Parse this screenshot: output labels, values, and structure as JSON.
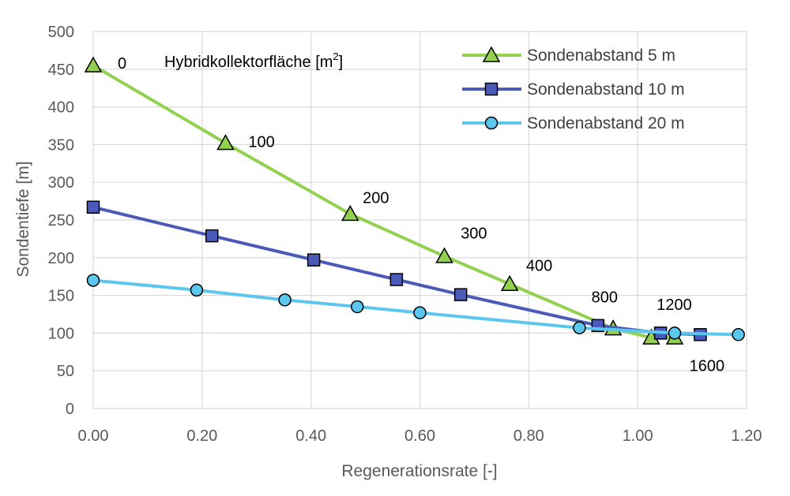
{
  "chart_data": {
    "type": "line",
    "xlabel": "Regenerationsrate [-]",
    "ylabel": "Sondentiefe [m]",
    "xlim": [
      0,
      1.2
    ],
    "ylim": [
      0,
      500
    ],
    "x_ticks": [
      "0.00",
      "0.20",
      "0.40",
      "0.60",
      "0.80",
      "1.00",
      "1.20"
    ],
    "y_ticks": [
      "0",
      "50",
      "100",
      "150",
      "200",
      "250",
      "300",
      "350",
      "400",
      "450",
      "500"
    ],
    "grid": true,
    "legend_position": "top-right",
    "inset_label": {
      "text": "Hybridkollektorfläche [m",
      "superscript": "2",
      "suffix": "]"
    },
    "series": [
      {
        "name": "Sondenabstand 5 m",
        "marker": "triangle",
        "color": "#92d050",
        "points": [
          [
            0.0,
            455
          ],
          [
            0.243,
            352
          ],
          [
            0.472,
            258
          ],
          [
            0.645,
            202
          ],
          [
            0.765,
            165
          ],
          [
            0.955,
            106
          ],
          [
            1.025,
            94
          ],
          [
            1.068,
            94
          ]
        ]
      },
      {
        "name": "Sondenabstand 10 m",
        "marker": "square",
        "color": "#4a5ab8",
        "points": [
          [
            0.0,
            267
          ],
          [
            0.218,
            229
          ],
          [
            0.405,
            197
          ],
          [
            0.557,
            171
          ],
          [
            0.675,
            151
          ],
          [
            0.927,
            110
          ],
          [
            1.042,
            100
          ],
          [
            1.115,
            98
          ]
        ]
      },
      {
        "name": "Sondenabstand 20 m",
        "marker": "circle",
        "color": "#5bc6ee",
        "points": [
          [
            0.0,
            170
          ],
          [
            0.19,
            157
          ],
          [
            0.352,
            144
          ],
          [
            0.485,
            135
          ],
          [
            0.6,
            127
          ],
          [
            0.893,
            107
          ],
          [
            1.068,
            100
          ],
          [
            1.185,
            98
          ]
        ]
      }
    ],
    "annotations": [
      {
        "text": "0",
        "x": 0.045,
        "y": 458
      },
      {
        "text": "100",
        "x": 0.285,
        "y": 354
      },
      {
        "text": "200",
        "x": 0.495,
        "y": 280
      },
      {
        "text": "300",
        "x": 0.675,
        "y": 233
      },
      {
        "text": "400",
        "x": 0.795,
        "y": 190
      },
      {
        "text": "800",
        "x": 0.915,
        "y": 148
      },
      {
        "text": "1200",
        "x": 1.035,
        "y": 138
      },
      {
        "text": "1600",
        "x": 1.095,
        "y": 57
      }
    ]
  }
}
